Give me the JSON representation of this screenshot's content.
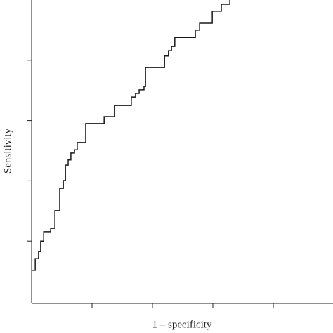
{
  "chart_data": {
    "type": "line",
    "step": "post",
    "color": "#1a1a1a",
    "xlabel": "1 – specificity",
    "ylabel": "Sensitivity",
    "xlim": [
      0,
      1
    ],
    "ylim": [
      0,
      1
    ],
    "xticks": [
      0.2,
      0.4,
      0.6,
      0.8
    ],
    "yticks": [
      0.2,
      0.4,
      0.6,
      0.8
    ],
    "x": [
      0,
      0.012,
      0.023,
      0.03,
      0.04,
      0.063,
      0.077,
      0.093,
      0.105,
      0.112,
      0.121,
      0.13,
      0.142,
      0.151,
      0.179,
      0.24,
      0.274,
      0.33,
      0.344,
      0.356,
      0.372,
      0.377,
      0.44,
      0.453,
      0.463,
      0.474,
      0.542,
      0.556,
      0.598,
      0.628,
      0.656
    ],
    "y": [
      0.103,
      0.142,
      0.166,
      0.2,
      0.231,
      0.242,
      0.301,
      0.375,
      0.401,
      0.452,
      0.469,
      0.492,
      0.503,
      0.527,
      0.59,
      0.613,
      0.65,
      0.678,
      0.69,
      0.702,
      0.713,
      0.776,
      0.814,
      0.832,
      0.846,
      0.876,
      0.9,
      0.923,
      0.963,
      0.986,
      1.0
    ]
  }
}
